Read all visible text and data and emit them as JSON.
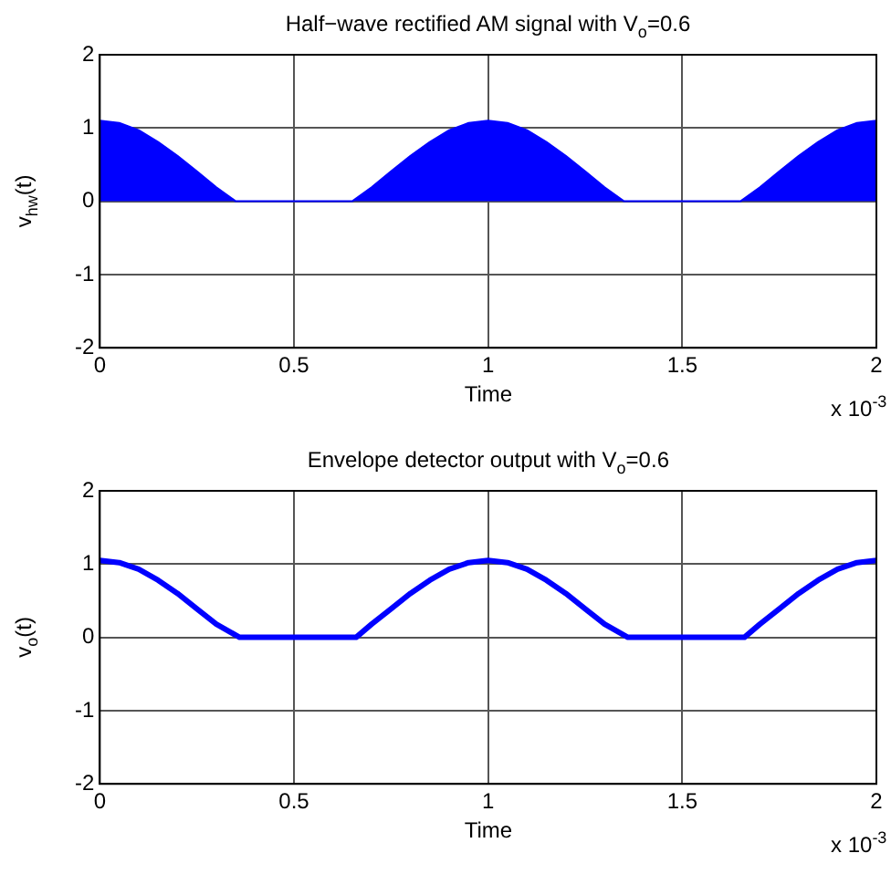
{
  "chart_data": [
    {
      "type": "area",
      "title": "Half−wave rectified AM signal with V$_{o}$=0.6",
      "xlabel": "Time",
      "ylabel": "v$_{hw}$(t)",
      "x": [
        0,
        0.05,
        0.1,
        0.15,
        0.2,
        0.25,
        0.3,
        0.35,
        0.4,
        0.45,
        0.5,
        0.55,
        0.6,
        0.65,
        0.7,
        0.75,
        0.8,
        0.85,
        0.9,
        0.95,
        1,
        1.05,
        1.1,
        1.15,
        1.2,
        1.25,
        1.3,
        1.35,
        1.4,
        1.45,
        1.5,
        1.55,
        1.6,
        1.65,
        1.7,
        1.75,
        1.8,
        1.85,
        1.9,
        1.95,
        2
      ],
      "series": [
        {
          "color": "#0000ff",
          "values": [
            1.1,
            1.07,
            0.97,
            0.81,
            0.62,
            0.41,
            0.19,
            0,
            0,
            0,
            0,
            0,
            0,
            0,
            0.19,
            0.41,
            0.62,
            0.81,
            0.97,
            1.07,
            1.1,
            1.07,
            0.97,
            0.81,
            0.62,
            0.41,
            0.19,
            0,
            0,
            0,
            0,
            0,
            0,
            0,
            0.19,
            0.41,
            0.62,
            0.81,
            0.97,
            1.07,
            1.1
          ]
        }
      ],
      "xlim": [
        0,
        2
      ],
      "xticks": [
        0,
        0.5,
        1,
        1.5,
        2
      ],
      "ylim": [
        -2,
        2
      ],
      "yticks": [
        -2,
        -1,
        0,
        1,
        2
      ],
      "grid": true,
      "marker": "none",
      "annotations": [
        "x 10$^{-3}$"
      ]
    },
    {
      "type": "line",
      "title": "Envelope detector output with V$_{o}$=0.6",
      "xlabel": "Time",
      "ylabel": "v$_{o}$(t)",
      "x": [
        0,
        0.05,
        0.1,
        0.15,
        0.2,
        0.25,
        0.3,
        0.36,
        0.4,
        0.45,
        0.5,
        0.55,
        0.6,
        0.66,
        0.7,
        0.75,
        0.8,
        0.85,
        0.9,
        0.95,
        1,
        1.05,
        1.1,
        1.15,
        1.2,
        1.25,
        1.3,
        1.36,
        1.4,
        1.45,
        1.5,
        1.55,
        1.6,
        1.66,
        1.7,
        1.75,
        1.8,
        1.85,
        1.9,
        1.95,
        2
      ],
      "series": [
        {
          "color": "#0000ff",
          "values": [
            1.05,
            1.02,
            0.93,
            0.78,
            0.6,
            0.39,
            0.18,
            0,
            0,
            0,
            0,
            0,
            0,
            0,
            0.18,
            0.39,
            0.6,
            0.78,
            0.93,
            1.02,
            1.05,
            1.02,
            0.93,
            0.78,
            0.6,
            0.39,
            0.18,
            0,
            0,
            0,
            0,
            0,
            0,
            0,
            0.18,
            0.39,
            0.6,
            0.78,
            0.93,
            1.02,
            1.05
          ]
        }
      ],
      "xlim": [
        0,
        2
      ],
      "xticks": [
        0,
        0.5,
        1,
        1.5,
        2
      ],
      "ylim": [
        -2,
        2
      ],
      "yticks": [
        -2,
        -1,
        0,
        1,
        2
      ],
      "grid": true,
      "marker": "none",
      "line_style": "solid",
      "annotations": [
        "x 10$^{-3}$"
      ]
    }
  ]
}
